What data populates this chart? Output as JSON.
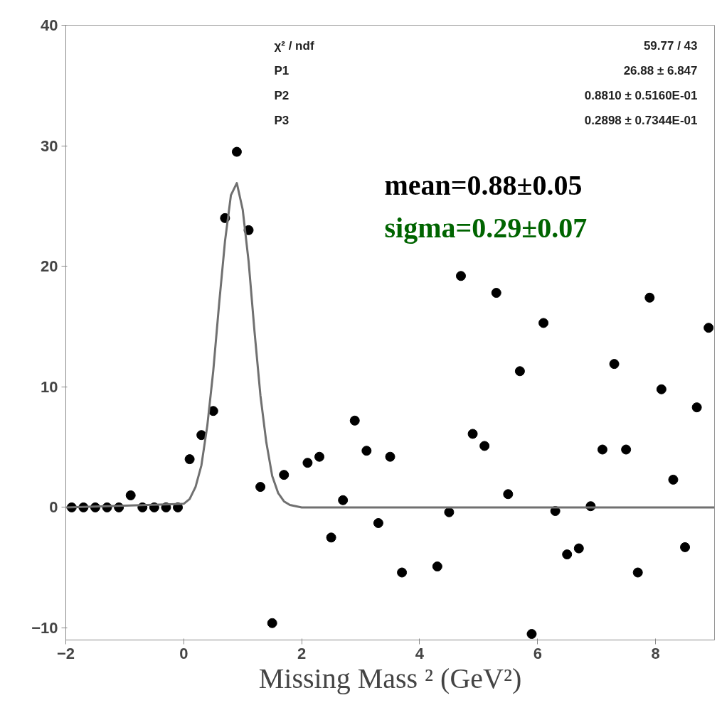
{
  "chart_data": {
    "type": "scatter",
    "xlabel": "Missing Mass ² (GeV²)",
    "xlim": [
      -2,
      9
    ],
    "ylim": [
      -11,
      40
    ],
    "xticks": [
      -2,
      0,
      2,
      4,
      6,
      8
    ],
    "yticks": [
      -10,
      0,
      10,
      20,
      30,
      40
    ],
    "grid": false,
    "series": [
      {
        "color": "#000000",
        "marker": "circle",
        "x": [
          -1.9,
          -1.7,
          -1.5,
          -1.3,
          -1.1,
          -0.9,
          -0.7,
          -0.5,
          -0.3,
          -0.1,
          0.1,
          0.3,
          0.5,
          0.7,
          0.9,
          1.1,
          1.3,
          1.5,
          1.7,
          1.9,
          2.1,
          2.3,
          2.5,
          2.7,
          2.9,
          3.1,
          3.3,
          3.5,
          3.7,
          3.9,
          4.1,
          4.3,
          4.5,
          4.7,
          4.9,
          5.1,
          5.3,
          5.5,
          5.7,
          5.9,
          6.1,
          6.3,
          6.5,
          6.7,
          6.9,
          7.1,
          7.3,
          7.5,
          7.7,
          7.9,
          8.1,
          8.3,
          8.5,
          8.7,
          8.9
        ],
        "values": [
          0,
          0,
          0,
          0,
          0,
          1,
          0,
          0,
          0,
          0,
          4,
          6,
          8,
          24,
          29.5,
          23,
          1.7,
          -9.6,
          2.7,
          null,
          3.7,
          4.2,
          -2.5,
          0.6,
          7.2,
          4.7,
          -1.3,
          4.2,
          -5.4,
          null,
          null,
          -4.9,
          -0.4,
          19.2,
          6.1,
          5.1,
          17.8,
          1.1,
          11.3,
          -10.5,
          15.3,
          -0.3,
          -3.9,
          -3.4,
          0.1,
          4.8,
          11.9,
          4.8,
          -5.4,
          17.4,
          9.8,
          2.3,
          -3.3,
          8.3,
          14.9
        ]
      },
      {
        "type": "line",
        "color": "#707070",
        "marker": "none",
        "line_style": "solid",
        "x": [
          -2,
          0,
          0.1,
          0.2,
          0.3,
          0.4,
          0.5,
          0.6,
          0.7,
          0.8,
          0.9,
          1.0,
          1.1,
          1.2,
          1.3,
          1.4,
          1.5,
          1.6,
          1.7,
          1.8,
          2,
          9
        ],
        "values": [
          0,
          0.3,
          0.7,
          1.7,
          3.5,
          6.8,
          11.3,
          16.9,
          22.1,
          25.9,
          26.9,
          24.7,
          20.4,
          14.6,
          9.3,
          5.4,
          2.6,
          1.2,
          0.5,
          0.2,
          0,
          0
        ]
      }
    ],
    "annotations": [
      "χ² / ndf",
      "59.77 / 43",
      "P1",
      "26.88 ± 6.847",
      "P2",
      "0.8810 ± 0.5160E-01",
      "P3",
      "0.2898 ± 0.7344E-01",
      "mean=0.88±0.05",
      "sigma=0.29±0.07"
    ]
  }
}
